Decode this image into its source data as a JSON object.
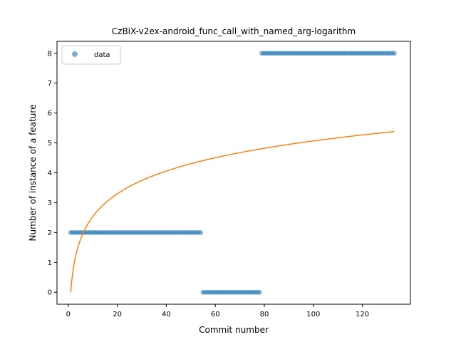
{
  "chart_data": {
    "type": "scatter",
    "title": "CzBiX-v2ex-android_func_call_with_named_arg-logarithm",
    "xlabel": "Commit number",
    "ylabel": "Number of instance of a feature",
    "xlim": [
      -4.6,
      139.6
    ],
    "ylim": [
      -0.4,
      8.4
    ],
    "xticks": [
      0,
      20,
      40,
      60,
      80,
      100,
      120
    ],
    "yticks": [
      0,
      1,
      2,
      3,
      4,
      5,
      6,
      7,
      8
    ],
    "grid": false,
    "legend": {
      "position": "top-left",
      "entries": [
        "data"
      ]
    },
    "series": [
      {
        "name": "data",
        "kind": "scatter",
        "color": "#1f77b4",
        "segments": [
          {
            "x_start": 1,
            "x_end": 54,
            "y": 2
          },
          {
            "x_start": 55,
            "x_end": 78,
            "y": 0
          },
          {
            "x_start": 79,
            "x_end": 133,
            "y": 8
          }
        ]
      },
      {
        "kind": "line",
        "color": "#ff7f0e",
        "model": "y = a * ln(x)",
        "a": 1.1,
        "x_range": [
          1,
          133
        ]
      }
    ]
  }
}
